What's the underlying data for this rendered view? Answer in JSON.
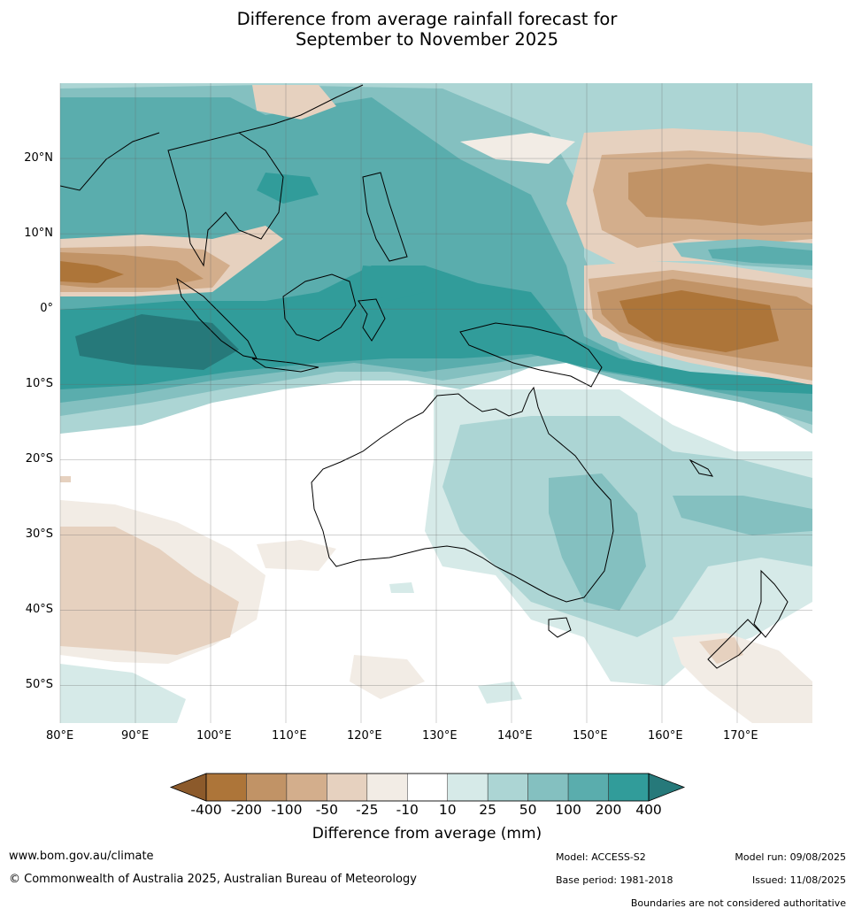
{
  "title": {
    "line1": "Difference from average rainfall forecast for",
    "line2": "September to November 2025"
  },
  "map": {
    "latitude_labels": [
      "20°N",
      "10°N",
      "0°",
      "10°S",
      "20°S",
      "30°S",
      "40°S",
      "50°S"
    ],
    "longitude_labels": [
      "80°E",
      "90°E",
      "100°E",
      "110°E",
      "120°E",
      "130°E",
      "140°E",
      "150°E",
      "160°E",
      "170°E"
    ],
    "longitude_range": [
      80,
      180
    ],
    "latitude_range": [
      -55,
      30
    ]
  },
  "colorbar": {
    "ticks": [
      "-400",
      "-200",
      "-100",
      "-50",
      "-25",
      "-10",
      "10",
      "25",
      "50",
      "100",
      "200",
      "400"
    ],
    "colors": [
      "#8c5a2b",
      "#ad7539",
      "#c19366",
      "#d3ae8c",
      "#e6d1bf",
      "#f2ece5",
      "#ffffff",
      "#d6eae8",
      "#acd5d4",
      "#84c0c0",
      "#5aadad",
      "#319c9a",
      "#26797a"
    ],
    "title": "Difference from average (mm)"
  },
  "footer": {
    "site": "www.bom.gov.au/climate",
    "copyright": "© Commonwealth of Australia 2025, Australian Bureau of Meteorology",
    "model": "Model: ACCESS-S2",
    "base_period": "Base period: 1981-2018",
    "model_run": "Model run: 09/08/2025",
    "issued": "Issued: 11/08/2025",
    "disclaimer": "Boundaries are not considered authoritative"
  }
}
